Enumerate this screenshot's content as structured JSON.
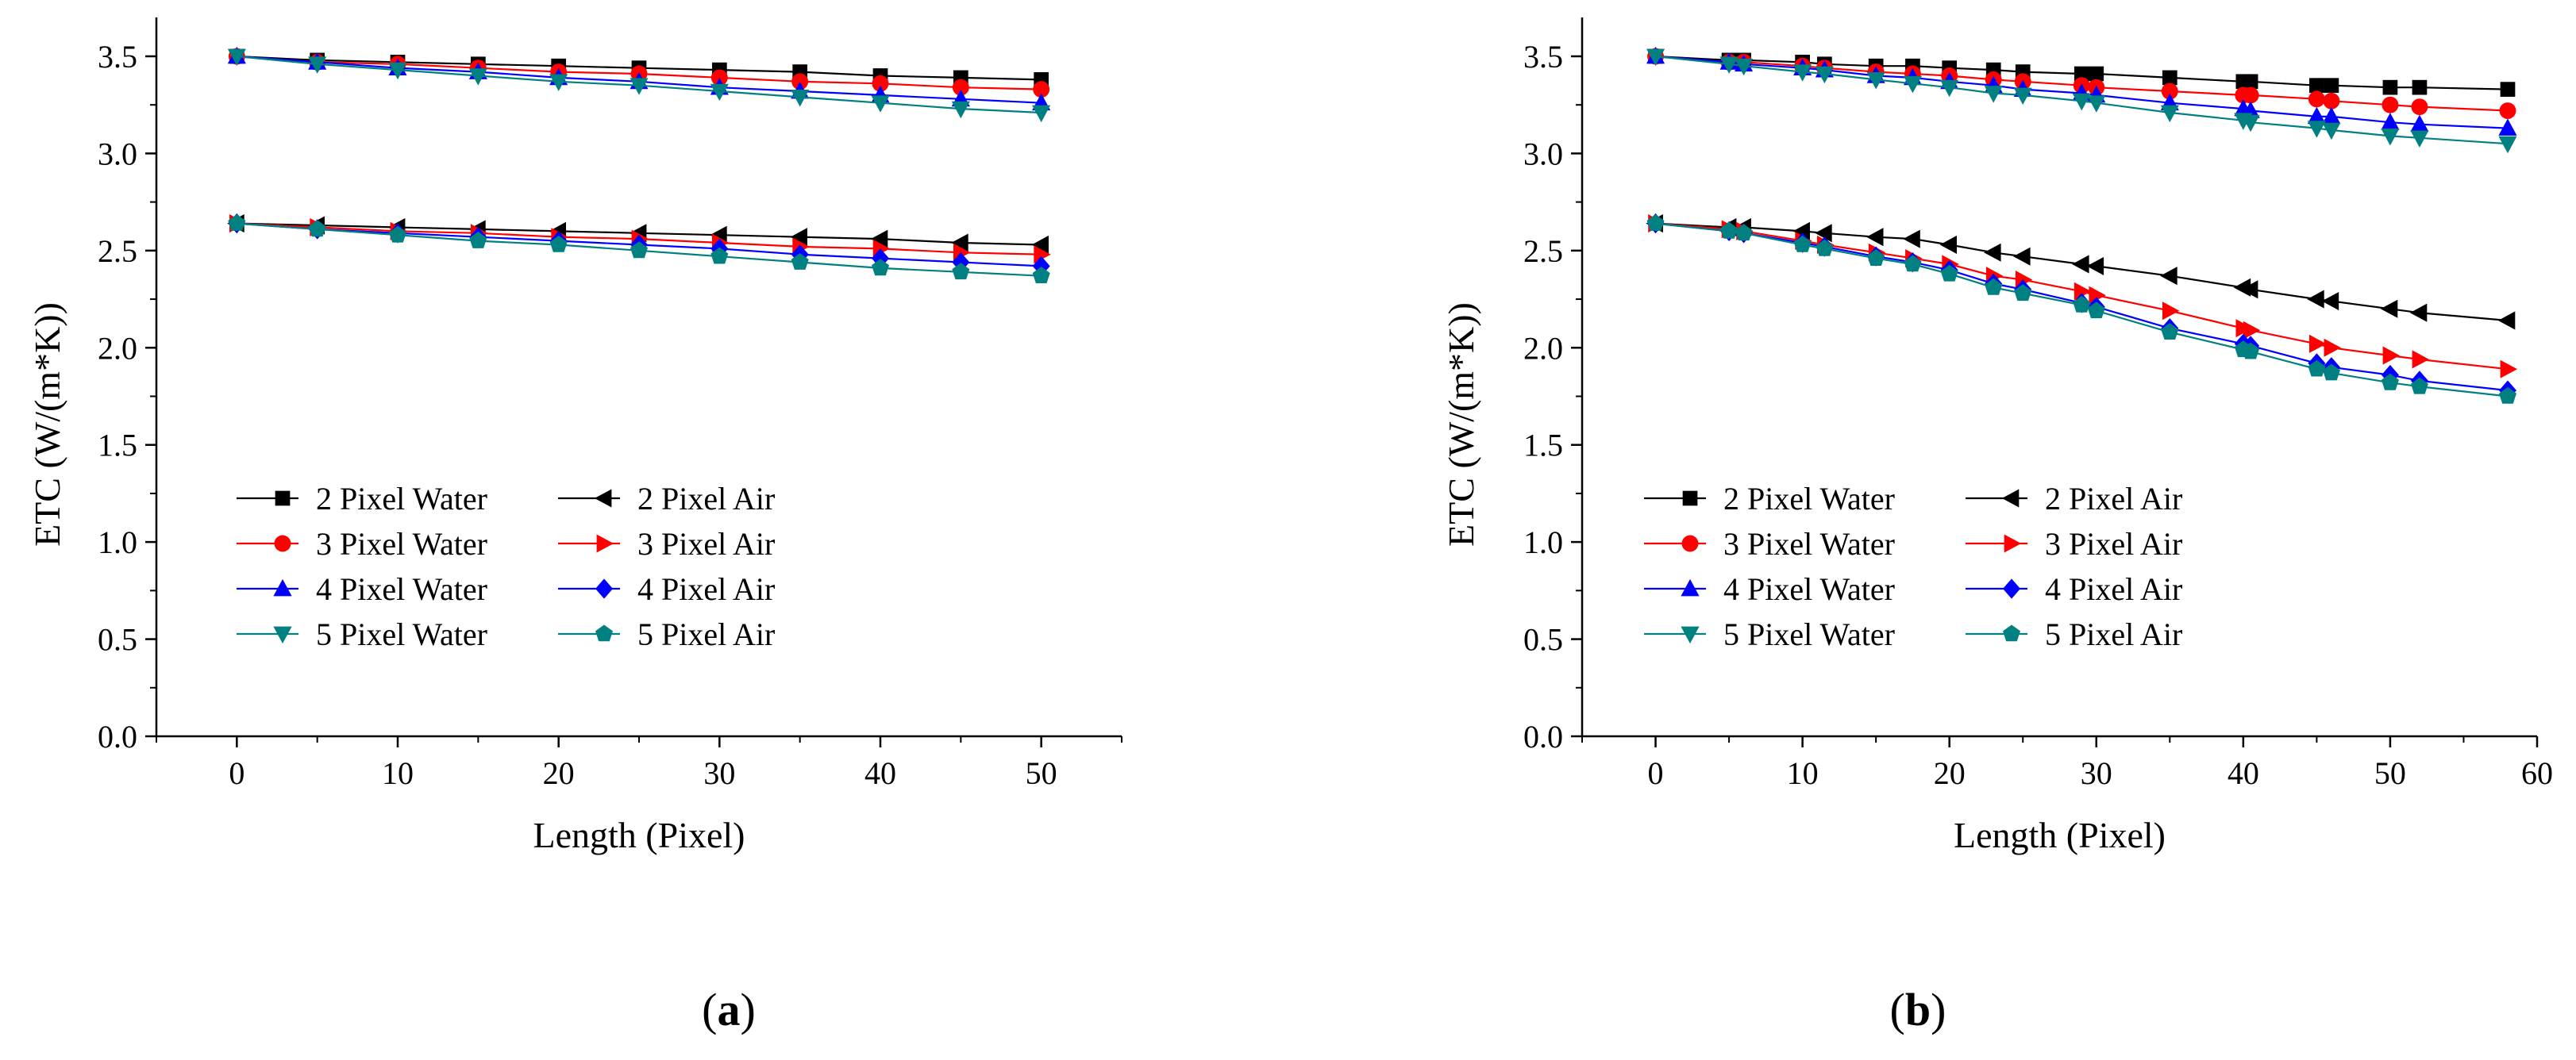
{
  "figure": {
    "panel_labels": [
      "(a)",
      "(b)"
    ],
    "panel_label_parts": [
      {
        "open": "(",
        "letter": "a",
        "close": ")"
      },
      {
        "open": "(",
        "letter": "b",
        "close": ")"
      }
    ]
  },
  "colors": {
    "black": "#000000",
    "red": "#ff0000",
    "blue": "#0000ff",
    "teal": "#008080"
  },
  "chart_data": [
    {
      "type": "line",
      "panel": "(a)",
      "xlabel": "Length (Pixel)",
      "ylabel": "ETC (W/(m*K))",
      "xlim": [
        -5,
        55
      ],
      "ylim": [
        0,
        3.7
      ],
      "xticks": [
        0,
        10,
        20,
        30,
        40,
        50
      ],
      "yticks": [
        0.0,
        0.5,
        1.0,
        1.5,
        2.0,
        2.5,
        3.0,
        3.5
      ],
      "ytick_labels": [
        "0.0",
        "0.5",
        "1.0",
        "1.5",
        "2.0",
        "2.5",
        "3.0",
        "3.5"
      ],
      "legend_position": "lower-left",
      "series": [
        {
          "name": "2 Pixel Water",
          "color": "#000000",
          "marker": "square",
          "x": [
            0,
            5,
            10,
            15,
            20,
            25,
            30,
            35,
            40,
            45,
            50
          ],
          "values": [
            3.5,
            3.48,
            3.47,
            3.46,
            3.45,
            3.44,
            3.43,
            3.42,
            3.4,
            3.39,
            3.38
          ]
        },
        {
          "name": "2 Pixel Air",
          "color": "#000000",
          "marker": "triangle-left",
          "x": [
            0,
            5,
            10,
            15,
            20,
            25,
            30,
            35,
            40,
            45,
            50
          ],
          "values": [
            2.64,
            2.63,
            2.62,
            2.61,
            2.6,
            2.59,
            2.58,
            2.57,
            2.56,
            2.54,
            2.53
          ]
        },
        {
          "name": "3 Pixel Water",
          "color": "#ff0000",
          "marker": "circle",
          "x": [
            0,
            5,
            10,
            15,
            20,
            25,
            30,
            35,
            40,
            45,
            50
          ],
          "values": [
            3.5,
            3.47,
            3.46,
            3.44,
            3.42,
            3.41,
            3.39,
            3.37,
            3.36,
            3.34,
            3.33
          ]
        },
        {
          "name": "3 Pixel Air",
          "color": "#ff0000",
          "marker": "triangle-right",
          "x": [
            0,
            5,
            10,
            15,
            20,
            25,
            30,
            35,
            40,
            45,
            50
          ],
          "values": [
            2.64,
            2.62,
            2.6,
            2.59,
            2.57,
            2.56,
            2.54,
            2.52,
            2.51,
            2.49,
            2.48
          ]
        },
        {
          "name": "4 Pixel Water",
          "color": "#0000ff",
          "marker": "triangle-up",
          "x": [
            0,
            5,
            10,
            15,
            20,
            25,
            30,
            35,
            40,
            45,
            50
          ],
          "values": [
            3.5,
            3.47,
            3.44,
            3.42,
            3.39,
            3.37,
            3.34,
            3.32,
            3.3,
            3.28,
            3.26
          ]
        },
        {
          "name": "4 Pixel Air",
          "color": "#0000ff",
          "marker": "diamond",
          "x": [
            0,
            5,
            10,
            15,
            20,
            25,
            30,
            35,
            40,
            45,
            50
          ],
          "values": [
            2.64,
            2.61,
            2.59,
            2.57,
            2.55,
            2.53,
            2.51,
            2.48,
            2.46,
            2.44,
            2.42
          ]
        },
        {
          "name": "5 Pixel Water",
          "color": "#008080",
          "marker": "triangle-down",
          "x": [
            0,
            5,
            10,
            15,
            20,
            25,
            30,
            35,
            40,
            45,
            50
          ],
          "values": [
            3.5,
            3.46,
            3.43,
            3.4,
            3.37,
            3.35,
            3.32,
            3.29,
            3.26,
            3.23,
            3.21
          ]
        },
        {
          "name": "5 Pixel Air",
          "color": "#008080",
          "marker": "pentagon",
          "x": [
            0,
            5,
            10,
            15,
            20,
            25,
            30,
            35,
            40,
            45,
            50
          ],
          "values": [
            2.64,
            2.61,
            2.58,
            2.55,
            2.53,
            2.5,
            2.47,
            2.44,
            2.41,
            2.39,
            2.37
          ]
        }
      ]
    },
    {
      "type": "line",
      "panel": "(b)",
      "xlabel": "Length (Pixel)",
      "ylabel": "ETC (W/(m*K))",
      "xlim": [
        -5,
        60
      ],
      "ylim": [
        0,
        3.7
      ],
      "xticks": [
        0,
        10,
        20,
        30,
        40,
        50,
        60
      ],
      "yticks": [
        0.0,
        0.5,
        1.0,
        1.5,
        2.0,
        2.5,
        3.0,
        3.5
      ],
      "ytick_labels": [
        "0.0",
        "0.5",
        "1.0",
        "1.5",
        "2.0",
        "2.5",
        "3.0",
        "3.5"
      ],
      "legend_position": "lower-left",
      "series": [
        {
          "name": "2 Pixel Water",
          "color": "#000000",
          "marker": "square",
          "x": [
            0,
            5,
            6,
            10,
            11.5,
            15,
            17.5,
            20,
            23,
            25,
            29,
            30,
            35,
            40,
            40.5,
            45,
            46,
            50,
            52,
            58
          ],
          "values": [
            3.5,
            3.48,
            3.48,
            3.47,
            3.46,
            3.45,
            3.45,
            3.44,
            3.43,
            3.42,
            3.41,
            3.41,
            3.39,
            3.37,
            3.37,
            3.35,
            3.35,
            3.34,
            3.34,
            3.33
          ]
        },
        {
          "name": "2 Pixel Air",
          "color": "#000000",
          "marker": "triangle-left",
          "x": [
            0,
            5,
            6,
            10,
            11.5,
            15,
            17.5,
            20,
            23,
            25,
            29,
            30,
            35,
            40,
            40.5,
            45,
            46,
            50,
            52,
            58
          ],
          "values": [
            2.64,
            2.62,
            2.62,
            2.6,
            2.59,
            2.57,
            2.56,
            2.53,
            2.49,
            2.47,
            2.43,
            2.42,
            2.37,
            2.31,
            2.3,
            2.25,
            2.24,
            2.2,
            2.18,
            2.14
          ]
        },
        {
          "name": "3 Pixel Water",
          "color": "#ff0000",
          "marker": "circle",
          "x": [
            0,
            5,
            6,
            10,
            11.5,
            15,
            17.5,
            20,
            23,
            25,
            29,
            30,
            35,
            40,
            40.5,
            45,
            46,
            50,
            52,
            58
          ],
          "values": [
            3.5,
            3.47,
            3.47,
            3.45,
            3.44,
            3.42,
            3.41,
            3.4,
            3.38,
            3.37,
            3.35,
            3.34,
            3.32,
            3.3,
            3.3,
            3.28,
            3.27,
            3.25,
            3.24,
            3.22
          ]
        },
        {
          "name": "3 Pixel Air",
          "color": "#ff0000",
          "marker": "triangle-right",
          "x": [
            0,
            5,
            6,
            10,
            11.5,
            15,
            17.5,
            20,
            23,
            25,
            29,
            30,
            35,
            40,
            40.5,
            45,
            46,
            50,
            52,
            58
          ],
          "values": [
            2.64,
            2.61,
            2.6,
            2.55,
            2.53,
            2.49,
            2.46,
            2.43,
            2.37,
            2.35,
            2.29,
            2.27,
            2.19,
            2.1,
            2.09,
            2.02,
            2.0,
            1.96,
            1.94,
            1.89
          ]
        },
        {
          "name": "4 Pixel Water",
          "color": "#0000ff",
          "marker": "triangle-up",
          "x": [
            0,
            5,
            6,
            10,
            11.5,
            15,
            17.5,
            20,
            23,
            25,
            29,
            30,
            35,
            40,
            40.5,
            45,
            46,
            50,
            52,
            58
          ],
          "values": [
            3.5,
            3.47,
            3.46,
            3.44,
            3.43,
            3.4,
            3.39,
            3.37,
            3.35,
            3.33,
            3.31,
            3.3,
            3.26,
            3.23,
            3.22,
            3.19,
            3.19,
            3.16,
            3.15,
            3.13
          ]
        },
        {
          "name": "4 Pixel Air",
          "color": "#0000ff",
          "marker": "diamond",
          "x": [
            0,
            5,
            6,
            10,
            11.5,
            15,
            17.5,
            20,
            23,
            25,
            29,
            30,
            35,
            40,
            40.5,
            45,
            46,
            50,
            52,
            58
          ],
          "values": [
            2.64,
            2.6,
            2.59,
            2.54,
            2.52,
            2.47,
            2.44,
            2.4,
            2.33,
            2.3,
            2.23,
            2.21,
            2.1,
            2.02,
            2.01,
            1.92,
            1.9,
            1.86,
            1.83,
            1.78
          ]
        },
        {
          "name": "5 Pixel Water",
          "color": "#008080",
          "marker": "triangle-down",
          "x": [
            0,
            5,
            6,
            10,
            11.5,
            15,
            17.5,
            20,
            23,
            25,
            29,
            30,
            35,
            40,
            40.5,
            45,
            46,
            50,
            52,
            58
          ],
          "values": [
            3.5,
            3.46,
            3.45,
            3.42,
            3.41,
            3.38,
            3.36,
            3.34,
            3.31,
            3.3,
            3.27,
            3.26,
            3.21,
            3.17,
            3.16,
            3.13,
            3.12,
            3.09,
            3.08,
            3.05
          ]
        },
        {
          "name": "5 Pixel Air",
          "color": "#008080",
          "marker": "pentagon",
          "x": [
            0,
            5,
            6,
            10,
            11.5,
            15,
            17.5,
            20,
            23,
            25,
            29,
            30,
            35,
            40,
            40.5,
            45,
            46,
            50,
            52,
            58
          ],
          "values": [
            2.64,
            2.6,
            2.59,
            2.53,
            2.51,
            2.46,
            2.43,
            2.38,
            2.31,
            2.28,
            2.22,
            2.19,
            2.08,
            1.99,
            1.98,
            1.89,
            1.87,
            1.82,
            1.8,
            1.75
          ]
        }
      ]
    }
  ]
}
